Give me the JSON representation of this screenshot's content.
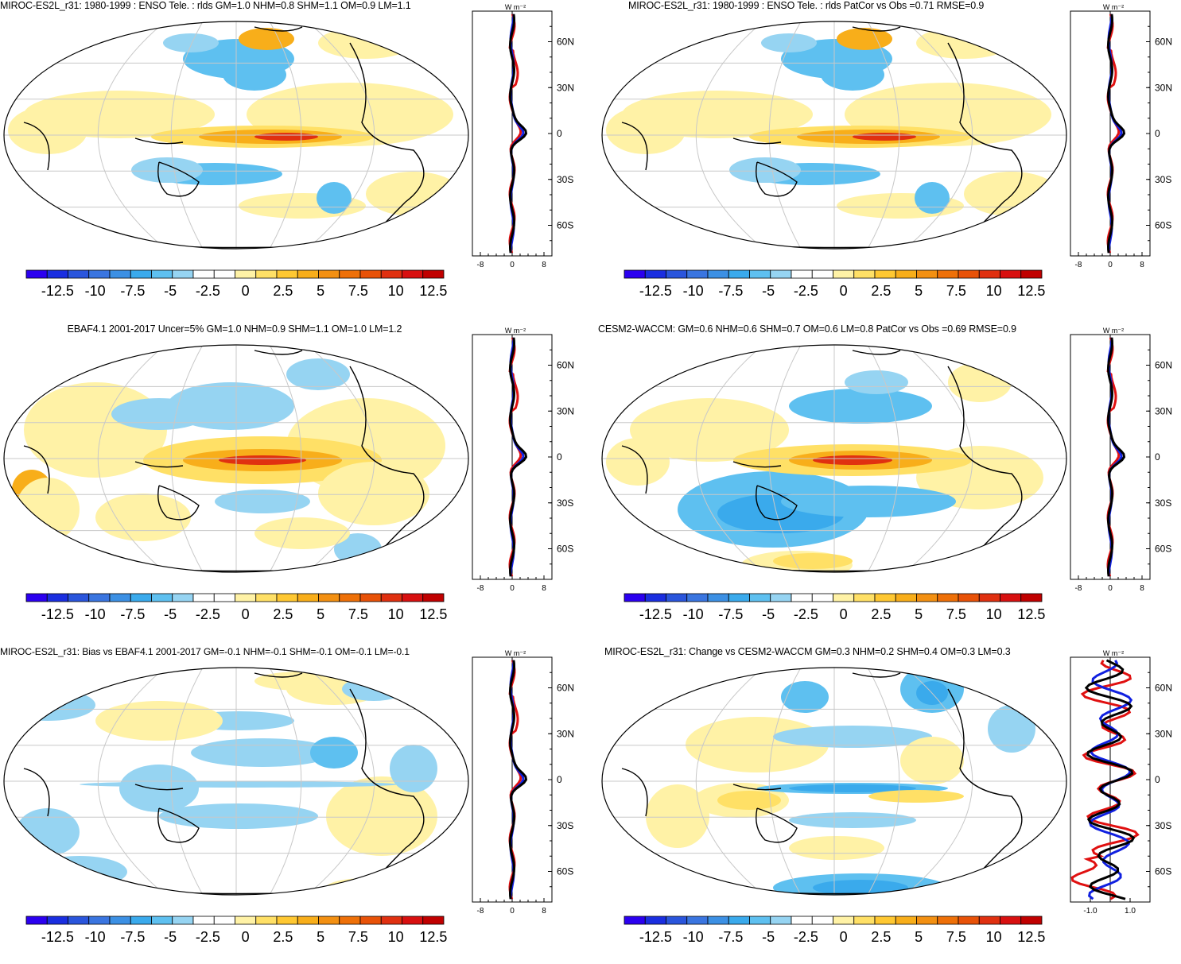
{
  "colorbar": {
    "labels": [
      "-12.5",
      "-10",
      "-7.5",
      "-5",
      "-2.5",
      "0",
      "2.5",
      "5",
      "7.5",
      "10",
      "12.5"
    ],
    "colors": [
      "#2b00f0",
      "#1a2ee0",
      "#2a55dc",
      "#3a75e0",
      "#3c90e4",
      "#3aaaec",
      "#5ec0f0",
      "#96d4f2",
      "#ffffff",
      "#ffffff",
      "#fff2a6",
      "#ffe066",
      "#ffc832",
      "#f8ae1a",
      "#f39012",
      "#ee7008",
      "#e85208",
      "#e03010",
      "#d81010",
      "#c00000"
    ]
  },
  "profile_axis": {
    "units": "W m⁻²",
    "lat_labels": [
      "60N",
      "30N",
      "0",
      "30S",
      "60S"
    ],
    "x_labels_default": [
      "-8",
      "0",
      "8"
    ],
    "x_labels_change": [
      "-1.0",
      "1.0"
    ]
  },
  "panels": [
    {
      "title": "MIROC-ES2L_r31: 1980-1999 : ENSO Tele. : rlds GM=1.0 NHM=0.8 SHM=1.1 OM=0.9 LM=1.1",
      "pattern": "model"
    },
    {
      "title": "MIROC-ES2L_r31: 1980-1999 : ENSO Tele. : rlds PatCor vs Obs =0.71 RMSE=0.9",
      "pattern": "model"
    },
    {
      "title": "EBAF4.1 2001-2017 Uncer=5% GM=1.0 NHM=0.9 SHM=1.1 OM=1.0 LM=1.2",
      "pattern": "obs"
    },
    {
      "title": "CESM2-WACCM: GM=0.6 NHM=0.6 SHM=0.7 OM=0.6 LM=0.8 PatCor vs Obs =0.69 RMSE=0.9",
      "pattern": "cesm"
    },
    {
      "title": "MIROC-ES2L_r31: Bias vs EBAF4.1 2001-2017 GM=-0.1 NHM=-0.1 SHM=-0.1 OM=-0.1 LM=-0.1",
      "pattern": "bias"
    },
    {
      "title": "MIROC-ES2L_r31: Change vs CESM2-WACCM GM=0.3 NHM=0.2 SHM=0.4 OM=0.3 LM=0.3",
      "pattern": "change"
    }
  ]
}
